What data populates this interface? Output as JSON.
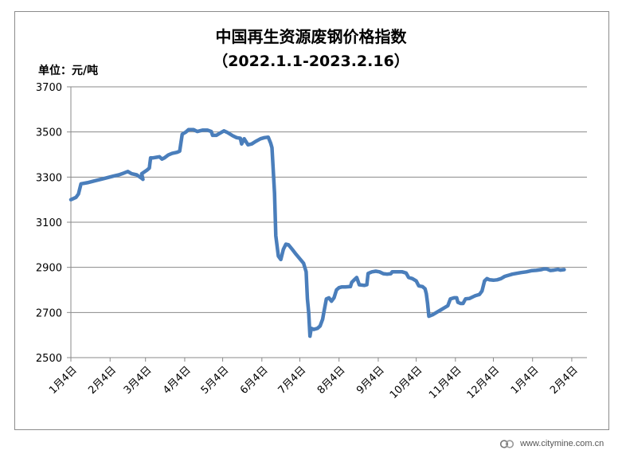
{
  "chart_data": {
    "type": "line",
    "title": "中国再生资源废钢价格指数",
    "subtitle": "（2022.1.1-2023.2.16）",
    "unit_label": "单位：元/吨",
    "xlabel": "",
    "ylabel": "",
    "ylim": [
      2500,
      3700
    ],
    "yticks": [
      2500,
      2700,
      2900,
      3100,
      3300,
      3500,
      3700
    ],
    "grid": true,
    "legend": "none",
    "x_tick_labels": [
      "1月4日",
      "2月4日",
      "3月4日",
      "4月4日",
      "5月4日",
      "6月4日",
      "7月4日",
      "8月4日",
      "9月4日",
      "10月4日",
      "11月4日",
      "12月4日",
      "1月4日",
      "2月4日"
    ],
    "x_tick_positions": [
      0,
      31,
      59,
      90,
      120,
      151,
      181,
      212,
      243,
      273,
      304,
      334,
      365,
      396
    ],
    "x_range": [
      0,
      408
    ],
    "series": [
      {
        "color": "#4a7ebb",
        "points": [
          [
            0,
            3200
          ],
          [
            4,
            3210
          ],
          [
            6,
            3225
          ],
          [
            8,
            3270
          ],
          [
            13,
            3275
          ],
          [
            20,
            3285
          ],
          [
            27,
            3295
          ],
          [
            34,
            3305
          ],
          [
            38,
            3310
          ],
          [
            42,
            3318
          ],
          [
            45,
            3325
          ],
          [
            48,
            3315
          ],
          [
            52,
            3310
          ],
          [
            56,
            3295
          ],
          [
            57,
            3290
          ],
          [
            56,
            3315
          ],
          [
            60,
            3330
          ],
          [
            62,
            3340
          ],
          [
            63,
            3385
          ],
          [
            65,
            3385
          ],
          [
            68,
            3388
          ],
          [
            70,
            3390
          ],
          [
            72,
            3380
          ],
          [
            74,
            3385
          ],
          [
            77,
            3398
          ],
          [
            80,
            3405
          ],
          [
            84,
            3410
          ],
          [
            86,
            3415
          ],
          [
            88,
            3490
          ],
          [
            91,
            3500
          ],
          [
            93,
            3510
          ],
          [
            97,
            3510
          ],
          [
            100,
            3502
          ],
          [
            104,
            3508
          ],
          [
            108,
            3508
          ],
          [
            111,
            3502
          ],
          [
            112,
            3485
          ],
          [
            115,
            3485
          ],
          [
            118,
            3495
          ],
          [
            121,
            3505
          ],
          [
            124,
            3497
          ],
          [
            128,
            3483
          ],
          [
            131,
            3475
          ],
          [
            134,
            3472
          ],
          [
            135,
            3447
          ],
          [
            137,
            3470
          ],
          [
            140,
            3443
          ],
          [
            143,
            3447
          ],
          [
            146,
            3458
          ],
          [
            150,
            3470
          ],
          [
            153,
            3475
          ],
          [
            156,
            3477
          ],
          [
            158,
            3450
          ],
          [
            159,
            3430
          ],
          [
            161,
            3230
          ],
          [
            162,
            3040
          ],
          [
            164,
            2950
          ],
          [
            166,
            2935
          ],
          [
            168,
            2980
          ],
          [
            170,
            3003
          ],
          [
            172,
            3000
          ],
          [
            175,
            2980
          ],
          [
            178,
            2958
          ],
          [
            181,
            2938
          ],
          [
            184,
            2918
          ],
          [
            186,
            2880
          ],
          [
            187,
            2760
          ],
          [
            188,
            2700
          ],
          [
            189,
            2595
          ],
          [
            190,
            2630
          ],
          [
            192,
            2625
          ],
          [
            195,
            2630
          ],
          [
            197,
            2640
          ],
          [
            199,
            2670
          ],
          [
            200,
            2700
          ],
          [
            202,
            2760
          ],
          [
            204,
            2765
          ],
          [
            206,
            2750
          ],
          [
            208,
            2765
          ],
          [
            210,
            2800
          ],
          [
            212,
            2810
          ],
          [
            214,
            2813
          ],
          [
            217,
            2813
          ],
          [
            221,
            2815
          ],
          [
            222,
            2833
          ],
          [
            224,
            2845
          ],
          [
            226,
            2855
          ],
          [
            228,
            2823
          ],
          [
            232,
            2820
          ],
          [
            234,
            2823
          ],
          [
            235,
            2873
          ],
          [
            238,
            2880
          ],
          [
            241,
            2883
          ],
          [
            244,
            2880
          ],
          [
            247,
            2872
          ],
          [
            250,
            2870
          ],
          [
            253,
            2872
          ],
          [
            254,
            2880
          ],
          [
            257,
            2880
          ],
          [
            262,
            2880
          ],
          [
            265,
            2875
          ],
          [
            267,
            2855
          ],
          [
            270,
            2850
          ],
          [
            273,
            2840
          ],
          [
            275,
            2818
          ],
          [
            278,
            2815
          ],
          [
            280,
            2805
          ],
          [
            281,
            2783
          ],
          [
            282,
            2740
          ],
          [
            283,
            2683
          ],
          [
            286,
            2690
          ],
          [
            289,
            2700
          ],
          [
            292,
            2710
          ],
          [
            295,
            2720
          ],
          [
            298,
            2730
          ],
          [
            300,
            2760
          ],
          [
            303,
            2765
          ],
          [
            305,
            2765
          ],
          [
            306,
            2745
          ],
          [
            308,
            2740
          ],
          [
            310,
            2740
          ],
          [
            312,
            2760
          ],
          [
            315,
            2762
          ],
          [
            318,
            2770
          ],
          [
            320,
            2775
          ],
          [
            323,
            2780
          ],
          [
            325,
            2795
          ],
          [
            327,
            2840
          ],
          [
            329,
            2850
          ],
          [
            331,
            2845
          ],
          [
            334,
            2843
          ],
          [
            337,
            2845
          ],
          [
            340,
            2850
          ],
          [
            343,
            2860
          ],
          [
            346,
            2865
          ],
          [
            349,
            2870
          ],
          [
            352,
            2873
          ],
          [
            356,
            2877
          ],
          [
            360,
            2880
          ],
          [
            364,
            2885
          ],
          [
            368,
            2887
          ],
          [
            372,
            2890
          ],
          [
            374,
            2893
          ],
          [
            376,
            2893
          ],
          [
            379,
            2886
          ],
          [
            382,
            2888
          ],
          [
            385,
            2891
          ],
          [
            387,
            2888
          ],
          [
            390,
            2890
          ]
        ]
      }
    ]
  },
  "watermark": {
    "text": "www.citymine.com.cn"
  }
}
